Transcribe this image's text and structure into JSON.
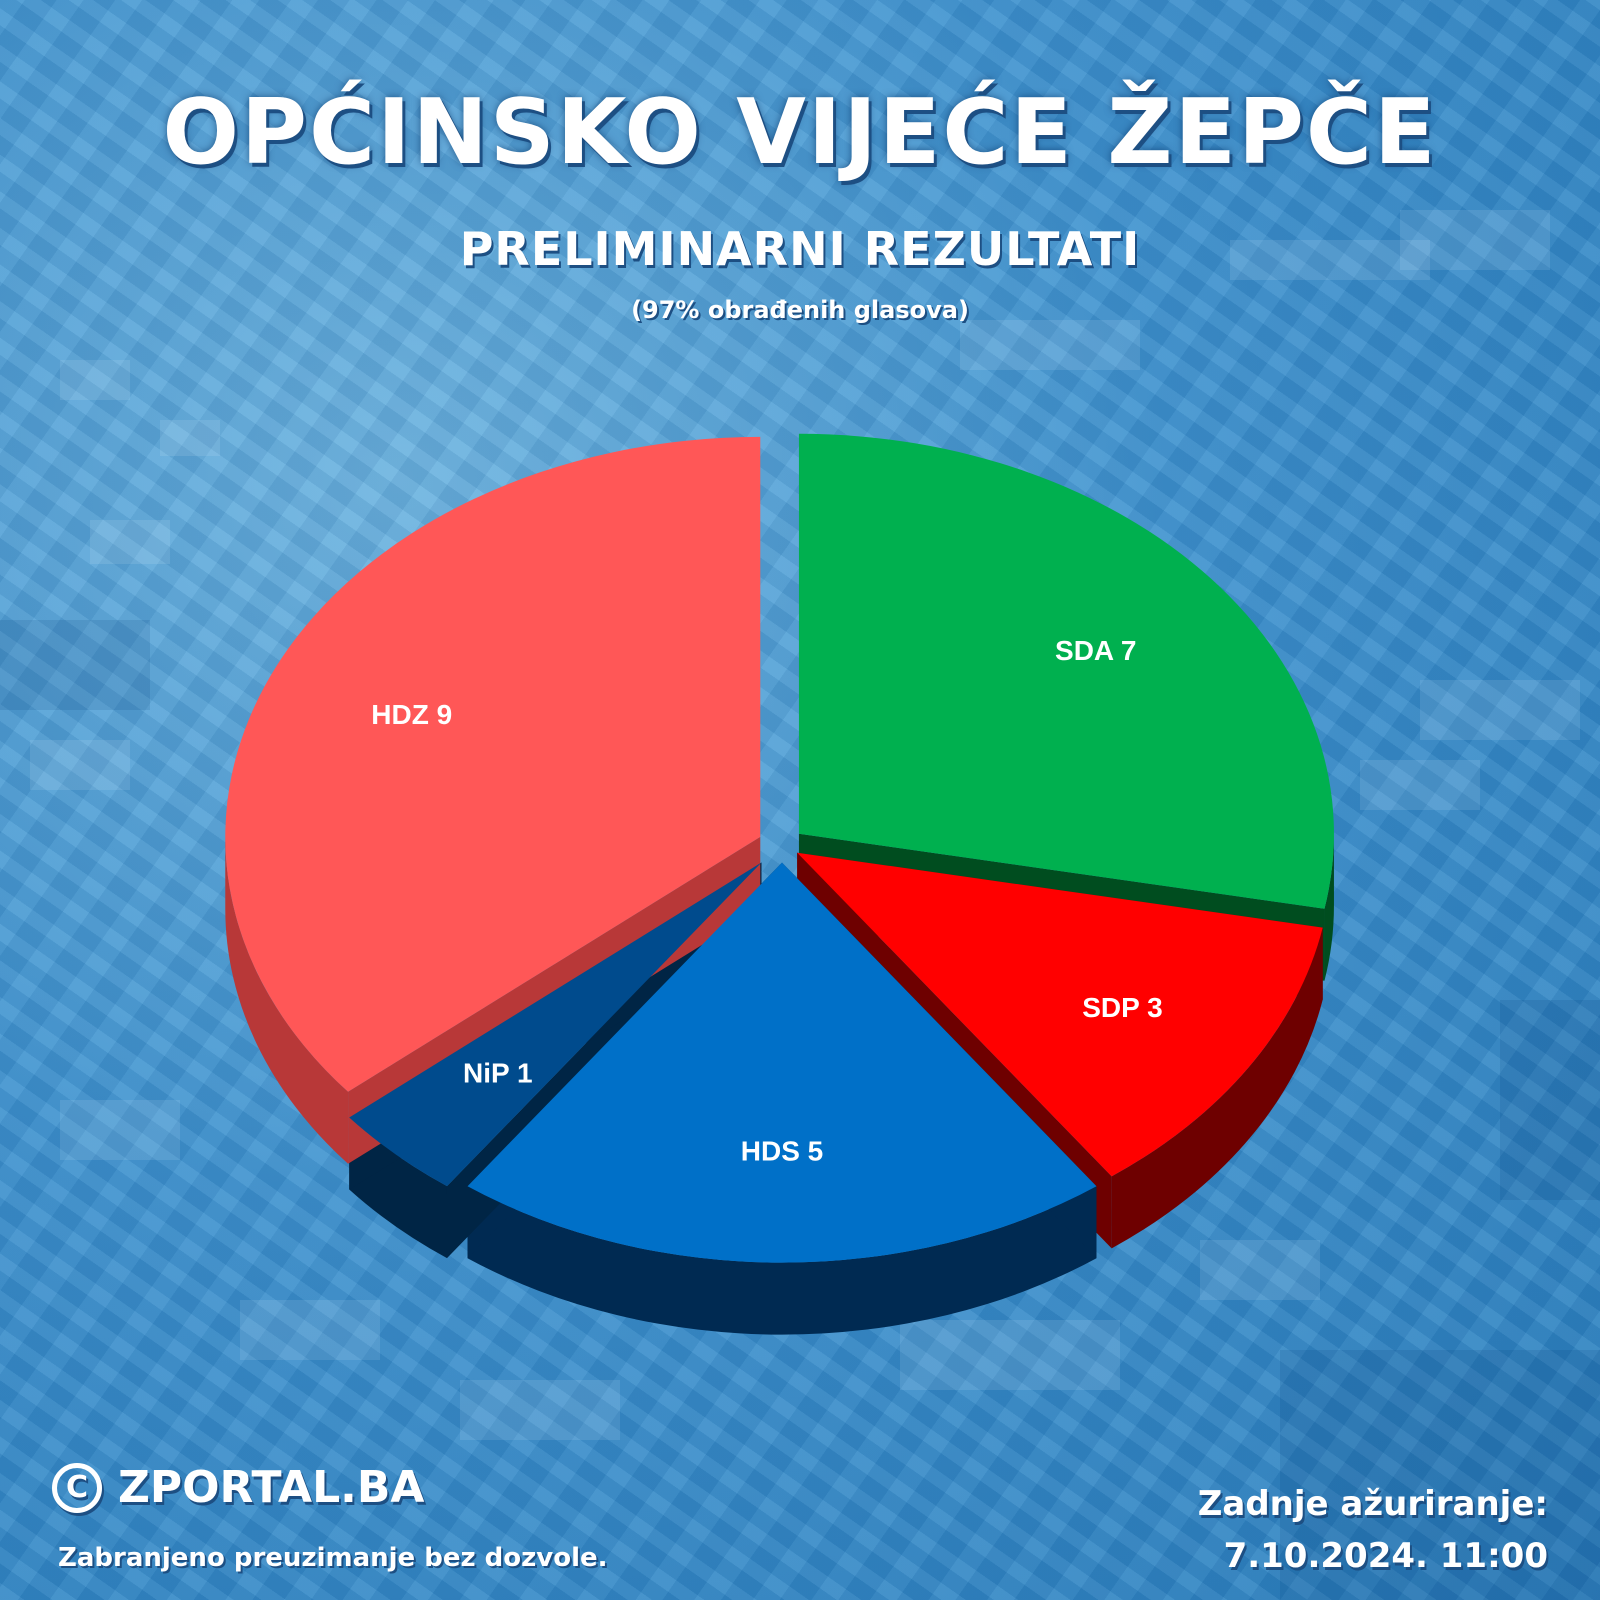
{
  "header": {
    "title": "OPĆINSKO VIJEĆE ŽEPČE",
    "subtitle": "PRELIMINARNI REZULTATI",
    "note": "(97% obrađenih glasova)"
  },
  "footer": {
    "brand": "ZPORTAL.BA",
    "copyright_symbol": "C",
    "disclaimer": "Zabranjeno preuzimanje bez dozvole.",
    "updated_label": "Zadnje ažuriranje:",
    "updated_value": "7.10.2024. 11:00"
  },
  "chart_data": {
    "type": "pie",
    "title": "OPĆINSKO VIJEĆE ŽEPČE",
    "subtitle": "PRELIMINARNI REZULTATI",
    "start_order": "clockwise from top",
    "slices": [
      {
        "label": "SDA 7",
        "name": "SDA",
        "value": 7,
        "color": "#00b04f",
        "side_color": "#004d1f"
      },
      {
        "label": "SDP 3",
        "name": "SDP",
        "value": 3,
        "color": "#ff0000",
        "side_color": "#6e0000"
      },
      {
        "label": "HDS 5",
        "name": "HDS",
        "value": 5,
        "color": "#0070c8",
        "side_color": "#002a52"
      },
      {
        "label": "NiP 1",
        "name": "NiP",
        "value": 1,
        "color": "#004b8d",
        "side_color": "#002545"
      },
      {
        "label": "HDZ 9",
        "name": "HDZ",
        "value": 9,
        "color": "#ff5757",
        "side_color": "#b83838"
      }
    ]
  }
}
